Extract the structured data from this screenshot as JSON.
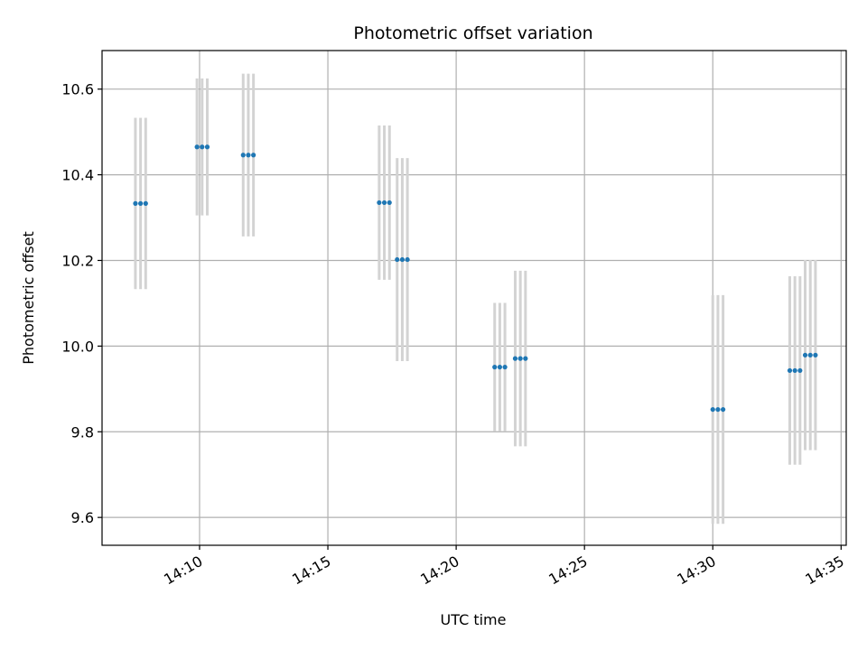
{
  "chart_data": {
    "type": "scatter",
    "title": "Photometric offset variation",
    "xlabel": "UTC time",
    "ylabel": "Photometric offset",
    "x_tick_labels": [
      "14:10",
      "14:15",
      "14:20",
      "14:25",
      "14:30",
      "14:35"
    ],
    "x_tick_minutes": [
      10,
      15,
      20,
      25,
      30,
      35
    ],
    "y_ticks": [
      9.6,
      9.8,
      10.0,
      10.2,
      10.4,
      10.6
    ],
    "y_tick_labels": [
      "9.6",
      "9.8",
      "10.0",
      "10.2",
      "10.4",
      "10.6"
    ],
    "xlim_minutes": [
      6.2,
      35.2
    ],
    "ylim": [
      9.535,
      10.69
    ],
    "grid": true,
    "colors": {
      "marker": "#1f77b4",
      "errorbar": "#d3d3d3",
      "grid": "#b0b0b0"
    },
    "points": [
      {
        "time_minutes": 7.5,
        "y": 10.333,
        "err": 0.2
      },
      {
        "time_minutes": 7.7,
        "y": 10.333,
        "err": 0.2
      },
      {
        "time_minutes": 7.9,
        "y": 10.333,
        "err": 0.2
      },
      {
        "time_minutes": 9.9,
        "y": 10.465,
        "err": 0.16
      },
      {
        "time_minutes": 10.1,
        "y": 10.465,
        "err": 0.16
      },
      {
        "time_minutes": 10.3,
        "y": 10.465,
        "err": 0.16
      },
      {
        "time_minutes": 11.7,
        "y": 10.446,
        "err": 0.19
      },
      {
        "time_minutes": 11.9,
        "y": 10.446,
        "err": 0.19
      },
      {
        "time_minutes": 12.1,
        "y": 10.446,
        "err": 0.19
      },
      {
        "time_minutes": 17.0,
        "y": 10.335,
        "err": 0.18
      },
      {
        "time_minutes": 17.2,
        "y": 10.335,
        "err": 0.18
      },
      {
        "time_minutes": 17.4,
        "y": 10.335,
        "err": 0.18
      },
      {
        "time_minutes": 17.7,
        "y": 10.202,
        "err": 0.237
      },
      {
        "time_minutes": 17.9,
        "y": 10.202,
        "err": 0.237
      },
      {
        "time_minutes": 18.1,
        "y": 10.202,
        "err": 0.237
      },
      {
        "time_minutes": 21.5,
        "y": 9.951,
        "err": 0.15
      },
      {
        "time_minutes": 21.7,
        "y": 9.951,
        "err": 0.15
      },
      {
        "time_minutes": 21.9,
        "y": 9.951,
        "err": 0.15
      },
      {
        "time_minutes": 22.3,
        "y": 9.971,
        "err": 0.205
      },
      {
        "time_minutes": 22.5,
        "y": 9.971,
        "err": 0.205
      },
      {
        "time_minutes": 22.7,
        "y": 9.971,
        "err": 0.205
      },
      {
        "time_minutes": 30.0,
        "y": 9.852,
        "err": 0.267
      },
      {
        "time_minutes": 30.2,
        "y": 9.852,
        "err": 0.267
      },
      {
        "time_minutes": 30.4,
        "y": 9.852,
        "err": 0.267
      },
      {
        "time_minutes": 33.0,
        "y": 9.943,
        "err": 0.22
      },
      {
        "time_minutes": 33.2,
        "y": 9.943,
        "err": 0.22
      },
      {
        "time_minutes": 33.4,
        "y": 9.943,
        "err": 0.22
      },
      {
        "time_minutes": 33.6,
        "y": 9.979,
        "err": 0.222
      },
      {
        "time_minutes": 33.8,
        "y": 9.979,
        "err": 0.222
      },
      {
        "time_minutes": 34.0,
        "y": 9.979,
        "err": 0.222
      }
    ]
  }
}
